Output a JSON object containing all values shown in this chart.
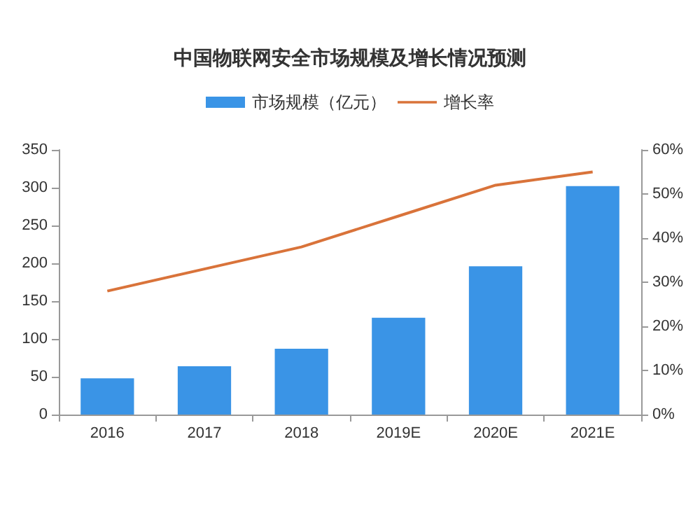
{
  "chart_data": {
    "type": "bar",
    "title": "中国物联网安全市场规模及增长情况预测",
    "categories": [
      "2016",
      "2017",
      "2018",
      "2019E",
      "2020E",
      "2021E"
    ],
    "series": [
      {
        "name": "市场规模（亿元）",
        "color": "#3a94e6",
        "values": [
          48,
          64,
          87,
          128,
          196,
          302
        ]
      },
      {
        "name": "增长率",
        "type": "line",
        "axis": "y2",
        "color": "#d9733a",
        "values": [
          28,
          33,
          38,
          45,
          52,
          55
        ]
      }
    ],
    "ylim": [
      0,
      350
    ],
    "yticks": [
      0,
      50,
      100,
      150,
      200,
      250,
      300,
      350
    ],
    "y2lim": [
      0,
      60
    ],
    "y2ticks": [
      {
        "value": 0,
        "label": "0%"
      },
      {
        "value": 10,
        "label": "10%"
      },
      {
        "value": 20,
        "label": "20%"
      },
      {
        "value": 30,
        "label": "30%"
      },
      {
        "value": 40,
        "label": "40%"
      },
      {
        "value": 50,
        "label": "50%"
      },
      {
        "value": 60,
        "label": "60%"
      }
    ],
    "legend": "top",
    "grid": false,
    "marker": "none",
    "line_style": "solid"
  }
}
